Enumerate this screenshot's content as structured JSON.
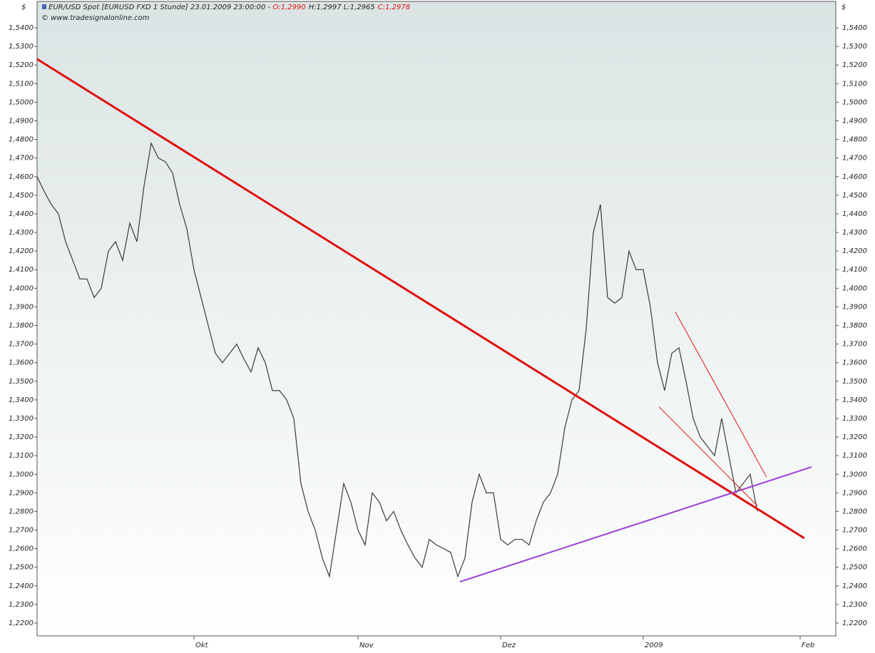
{
  "chart_data": {
    "type": "line",
    "header": {
      "currency_left": "$",
      "currency_right": "$",
      "instrument": "EUR/USD Spot [EURUSD FXD  1 Stunde] 23.01.2009 23:00:00 - ",
      "open": "O:1,2990",
      "high_low": "H:1,2997 L:1,2965",
      "close": "C:1,2978",
      "source": "© www.tradesignalonline.com"
    },
    "categories": [
      null,
      null,
      null,
      null,
      null,
      null,
      null,
      null,
      null,
      null,
      null,
      null,
      null,
      null,
      null,
      null,
      null,
      null,
      null,
      null,
      null,
      null,
      "Okt",
      null,
      null,
      null,
      null,
      null,
      null,
      null,
      null,
      null,
      null,
      null,
      null,
      null,
      null,
      null,
      null,
      null,
      null,
      null,
      null,
      null,
      null,
      "Nov",
      null,
      null,
      null,
      null,
      null,
      null,
      null,
      null,
      null,
      null,
      null,
      null,
      null,
      null,
      null,
      null,
      null,
      null,
      null,
      "Dez",
      null,
      null,
      null,
      null,
      null,
      null,
      null,
      null,
      null,
      null,
      null,
      null,
      null,
      null,
      null,
      null,
      null,
      null,
      null,
      "2009",
      null,
      null,
      null,
      null,
      null,
      null,
      null,
      null,
      null,
      null,
      null,
      null,
      null,
      null,
      null,
      null,
      null,
      null,
      null,
      null,
      null,
      "Feb"
    ],
    "series": [
      {
        "name": "EUR/USD",
        "color": "#3a3a3a",
        "values": [
          1.46,
          1.452,
          1.445,
          1.44,
          1.425,
          1.415,
          1.405,
          1.405,
          1.395,
          1.4,
          1.42,
          1.425,
          1.415,
          1.435,
          1.425,
          1.455,
          1.478,
          1.47,
          1.468,
          1.462,
          1.445,
          1.432,
          1.41,
          1.395,
          1.38,
          1.365,
          1.36,
          1.365,
          1.37,
          1.362,
          1.355,
          1.368,
          1.36,
          1.345,
          1.345,
          1.34,
          1.33,
          1.295,
          1.28,
          1.27,
          1.255,
          1.245,
          1.27,
          1.295,
          1.285,
          1.27,
          1.262,
          1.29,
          1.285,
          1.275,
          1.28,
          1.27,
          1.262,
          1.255,
          1.25,
          1.265,
          1.262,
          1.26,
          1.258,
          1.245,
          1.255,
          1.285,
          1.3,
          1.29,
          1.29,
          1.265,
          1.262,
          1.265,
          1.265,
          1.262,
          1.275,
          1.285,
          1.29,
          1.3,
          1.325,
          1.34,
          1.345,
          1.378,
          1.43,
          1.445,
          1.395,
          1.392,
          1.395,
          1.42,
          1.41,
          1.41,
          1.39,
          1.36,
          1.345,
          1.365,
          1.368,
          1.35,
          1.33,
          1.32,
          1.315,
          1.31,
          1.33,
          1.31,
          1.29,
          1.295,
          1.3,
          1.28,
          null,
          null,
          null,
          null,
          null,
          null
        ]
      }
    ],
    "trendlines": [
      {
        "color": "#e01010",
        "width": 3,
        "x": [
          0,
          107.6
        ],
        "y": [
          1.5232,
          1.2656
        ]
      },
      {
        "color": "#9b3fd6",
        "width": 2,
        "x": [
          59.3,
          108.6
        ],
        "y": [
          1.2422,
          1.3039
        ]
      },
      {
        "color": "#e01010",
        "width": 1,
        "x": [
          89.5,
          102.3
        ],
        "y": [
          1.3873,
          1.2984
        ]
      },
      {
        "color": "#e01010",
        "width": 1,
        "x": [
          87.2,
          101
        ],
        "y": [
          1.3363,
          1.2831
        ]
      }
    ],
    "ylim": [
      1.2131,
      1.5542
    ],
    "yticks": [
      {
        "value": 1.22,
        "label": "1,2200"
      },
      {
        "value": 1.23,
        "label": "1,2300"
      },
      {
        "value": 1.24,
        "label": "1,2400"
      },
      {
        "value": 1.25,
        "label": "1,2500"
      },
      {
        "value": 1.26,
        "label": "1,2600"
      },
      {
        "value": 1.27,
        "label": "1,2700"
      },
      {
        "value": 1.28,
        "label": "1,2800"
      },
      {
        "value": 1.29,
        "label": "1,2900"
      },
      {
        "value": 1.3,
        "label": "1,3000"
      },
      {
        "value": 1.31,
        "label": "1,3100"
      },
      {
        "value": 1.32,
        "label": "1,3200"
      },
      {
        "value": 1.33,
        "label": "1,3300"
      },
      {
        "value": 1.34,
        "label": "1,3400"
      },
      {
        "value": 1.35,
        "label": "1,3500"
      },
      {
        "value": 1.36,
        "label": "1,3600"
      },
      {
        "value": 1.37,
        "label": "1,3700"
      },
      {
        "value": 1.38,
        "label": "1,3800"
      },
      {
        "value": 1.39,
        "label": "1,3900"
      },
      {
        "value": 1.4,
        "label": "1,4000"
      },
      {
        "value": 1.41,
        "label": "1,4100"
      },
      {
        "value": 1.42,
        "label": "1,4200"
      },
      {
        "value": 1.43,
        "label": "1,4300"
      },
      {
        "value": 1.44,
        "label": "1,4400"
      },
      {
        "value": 1.45,
        "label": "1,4500"
      },
      {
        "value": 1.46,
        "label": "1,4600"
      },
      {
        "value": 1.47,
        "label": "1,4700"
      },
      {
        "value": 1.48,
        "label": "1,4800"
      },
      {
        "value": 1.49,
        "label": "1,4900"
      },
      {
        "value": 1.5,
        "label": "1,5000"
      },
      {
        "value": 1.51,
        "label": "1,5100"
      },
      {
        "value": 1.52,
        "label": "1,5200"
      },
      {
        "value": 1.53,
        "label": "1,5300"
      },
      {
        "value": 1.54,
        "label": "1,5400"
      }
    ]
  }
}
